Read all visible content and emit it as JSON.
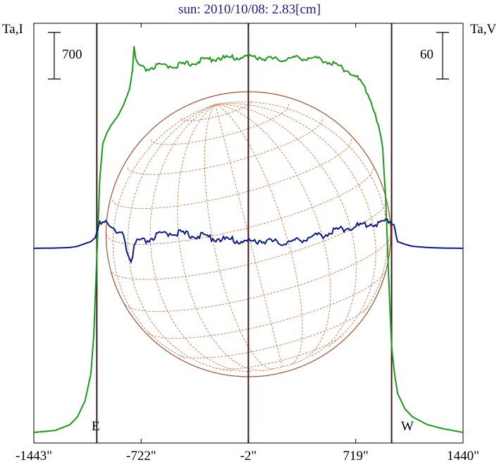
{
  "title": "sun: 2010/10/08: 2.83[cm]",
  "left_axis_label": "Ta,I",
  "right_axis_label": "Ta,V",
  "left_scale_value": "700",
  "right_scale_value": "60",
  "limb_labels": {
    "east": "E",
    "west": "W"
  },
  "colors": {
    "intensity": "#1a9a1a",
    "polarization": "#0a1a8c",
    "disk": "#a0522d",
    "grid": "#c87a4a",
    "marker": "#3a1a1a",
    "frame": "#000000"
  },
  "chart_data": {
    "type": "line",
    "title": "sun: 2010/10/08: 2.83[cm]",
    "xlim": [
      -1443,
      1440
    ],
    "x_ticks": [
      -1443,
      -722,
      -2,
      719,
      1440
    ],
    "x_tick_labels": [
      "-1443\"",
      "-722\"",
      "-2\"",
      "719\"",
      "1440\""
    ],
    "vertical_markers_arcsec": [
      -1020,
      -2,
      960
    ],
    "series": [
      {
        "name": "Ta,I",
        "x": [
          -1443,
          -1300,
          -1200,
          -1150,
          -1100,
          -1060,
          -1040,
          -1020,
          -1000,
          -980,
          -950,
          -920,
          -880,
          -840,
          -800,
          -780,
          -770,
          -760,
          -740,
          -700,
          -600,
          -500,
          -400,
          -300,
          -200,
          -100,
          0,
          100,
          200,
          300,
          400,
          500,
          600,
          650,
          700,
          750,
          800,
          850,
          880,
          900,
          920,
          940,
          960,
          980,
          1000,
          1050,
          1100,
          1200,
          1300,
          1440
        ],
        "y": [
          0.0,
          0.005,
          0.02,
          0.04,
          0.08,
          0.15,
          0.25,
          0.45,
          0.65,
          0.74,
          0.77,
          0.79,
          0.81,
          0.84,
          0.88,
          0.93,
          0.99,
          0.96,
          0.94,
          0.93,
          0.94,
          0.94,
          0.945,
          0.955,
          0.96,
          0.96,
          0.965,
          0.96,
          0.955,
          0.96,
          0.96,
          0.955,
          0.94,
          0.93,
          0.92,
          0.9,
          0.87,
          0.82,
          0.77,
          0.73,
          0.6,
          0.4,
          0.22,
          0.15,
          0.1,
          0.06,
          0.04,
          0.02,
          0.01,
          0.0
        ]
      },
      {
        "name": "Ta,V",
        "x": [
          -1443,
          -1300,
          -1200,
          -1150,
          -1100,
          -1060,
          -1030,
          -1000,
          -960,
          -920,
          -880,
          -840,
          -810,
          -790,
          -770,
          -750,
          -700,
          -600,
          -500,
          -400,
          -300,
          -200,
          -100,
          0,
          100,
          200,
          300,
          400,
          500,
          600,
          700,
          800,
          900,
          950,
          975,
          1000,
          1050,
          1100,
          1200,
          1300,
          1440
        ],
        "y": [
          0,
          0.2,
          0.6,
          1.5,
          3.5,
          5.0,
          8.0,
          20.0,
          21.0,
          15.0,
          10.0,
          10.0,
          -5.0,
          -10.0,
          0.0,
          5.0,
          5.0,
          10.0,
          12.0,
          10.0,
          9.0,
          7.0,
          6.0,
          5.0,
          6.0,
          4.0,
          5.0,
          8.0,
          10.0,
          14.0,
          16.0,
          18.0,
          19.0,
          21.0,
          19.0,
          5.0,
          3.0,
          1.5,
          0.6,
          0.2,
          0
        ]
      }
    ]
  }
}
